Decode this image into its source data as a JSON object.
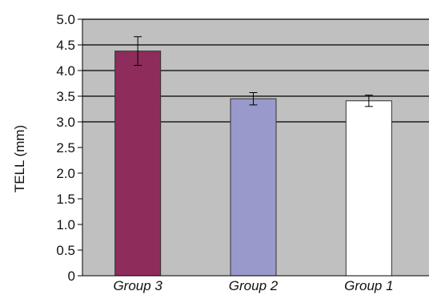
{
  "chart_data": {
    "type": "bar",
    "title": "",
    "xlabel": "",
    "ylabel": "TELL (mm)",
    "ylim": [
      0,
      5.0
    ],
    "yticks": [
      "0",
      "0.5",
      "1.0",
      "1.5",
      "2.0",
      "2.5",
      "3.0",
      "3.5",
      "4.0",
      "4.5",
      "5.0"
    ],
    "grid_lines_at": [
      3.0,
      3.5,
      4.0,
      4.5,
      5.0
    ],
    "plot_background": "#c0c0c0",
    "categories": [
      "Group 3",
      "Group 2",
      "Group 1"
    ],
    "values": [
      4.38,
      3.45,
      3.41
    ],
    "errors": [
      0.28,
      0.12,
      0.11
    ],
    "bar_colors": [
      "#8e2c5b",
      "#9999cc",
      "#ffffff"
    ],
    "legend": "none"
  }
}
